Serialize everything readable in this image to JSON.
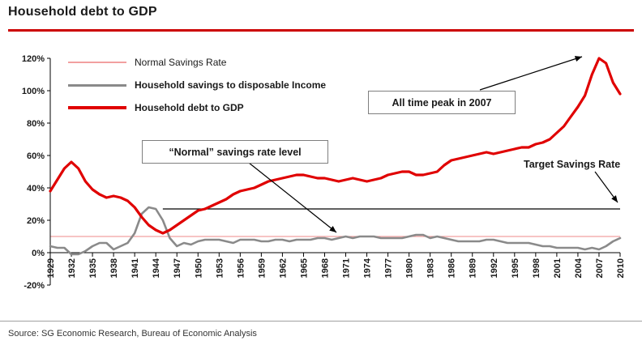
{
  "page": {
    "title": "Household debt to GDP",
    "source": "Source: SG Economic Research, Bureau of Economic Analysis"
  },
  "annotations": {
    "peak": "All time peak in 2007",
    "normal_level": "“Normal” savings rate level",
    "target": "Target Savings Rate"
  },
  "legend": [
    {
      "label": "Normal Savings Rate",
      "color": "#F2A0A0",
      "line_width": 1.5
    },
    {
      "label": "Household savings to disposable Income",
      "color": "#8A8A8A",
      "line_width": 3
    },
    {
      "label": "Household debt to GDP",
      "color": "#E00000",
      "line_width": 3.5
    }
  ],
  "colors": {
    "title_rule": "#CC0000",
    "axis": "#000000",
    "annotation_border": "#7F7F7F"
  },
  "chart_data": {
    "type": "line",
    "title": "Household debt to GDP",
    "x_range": [
      1929,
      2010
    ],
    "x_ticks": [
      1929,
      1932,
      1935,
      1938,
      1941,
      1944,
      1947,
      1950,
      1953,
      1956,
      1959,
      1962,
      1965,
      1968,
      1971,
      1974,
      1977,
      1980,
      1983,
      1986,
      1989,
      1992,
      1995,
      1998,
      2001,
      2004,
      2007,
      2010
    ],
    "ylim": [
      -20,
      120
    ],
    "y_tick_step": 20,
    "y_tick_format": "percent",
    "legend_position": "top-left",
    "grid": false,
    "series": [
      {
        "name": "Household savings to disposable Income",
        "color": "#8A8A8A",
        "width": 2.6,
        "values": [
          4,
          3,
          3,
          -1,
          -1,
          1,
          4,
          6,
          6,
          2,
          4,
          6,
          12,
          24,
          28,
          27,
          20,
          9,
          4,
          6,
          5,
          7,
          8,
          8,
          8,
          7,
          6,
          8,
          8,
          8,
          7,
          7,
          8,
          8,
          7,
          8,
          8,
          8,
          9,
          9,
          8,
          9,
          10,
          9,
          10,
          10,
          10,
          9,
          9,
          9,
          9,
          10,
          11,
          11,
          9,
          10,
          9,
          8,
          7,
          7,
          7,
          7,
          8,
          8,
          7,
          6,
          6,
          6,
          6,
          5,
          4,
          4,
          3,
          3,
          3,
          3,
          2,
          3,
          2,
          4,
          7,
          9
        ]
      },
      {
        "name": "Household debt to GDP",
        "color": "#E00000",
        "width": 3.2,
        "values": [
          38,
          45,
          52,
          56,
          52,
          44,
          39,
          36,
          34,
          35,
          34,
          32,
          28,
          22,
          17,
          14,
          12,
          14,
          17,
          20,
          23,
          26,
          27,
          29,
          31,
          33,
          36,
          38,
          39,
          40,
          42,
          44,
          45,
          46,
          47,
          48,
          48,
          47,
          46,
          46,
          45,
          44,
          45,
          46,
          45,
          44,
          45,
          46,
          48,
          49,
          50,
          50,
          48,
          48,
          49,
          50,
          54,
          57,
          58,
          59,
          60,
          61,
          62,
          61,
          62,
          63,
          64,
          65,
          65,
          67,
          68,
          70,
          74,
          78,
          84,
          90,
          97,
          110,
          120,
          117,
          105,
          98
        ]
      }
    ],
    "reference_lines": [
      {
        "name": "Normal Savings Rate",
        "value": 10,
        "x_start": 1929,
        "x_end": 2010,
        "color": "#F2A0A0",
        "width": 1.2
      },
      {
        "name": "Target Savings Rate",
        "value": 27,
        "x_start": 1945,
        "x_end": 2010,
        "color": "#000000",
        "width": 1.3
      }
    ]
  }
}
